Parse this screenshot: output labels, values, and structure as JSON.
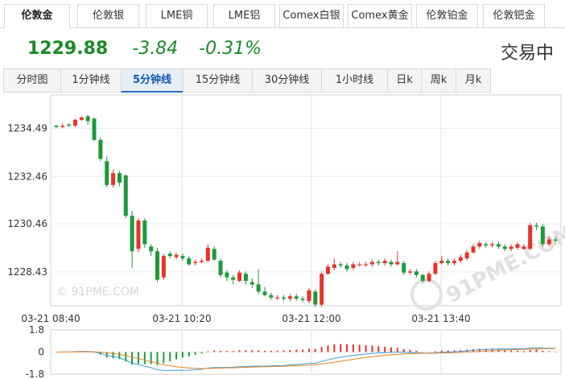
{
  "top_tabs": [
    {
      "label": "伦敦金",
      "active": true
    },
    {
      "label": "伦敦银",
      "active": false
    },
    {
      "label": "LME铜",
      "active": false
    },
    {
      "label": "LME铝",
      "active": false
    },
    {
      "label": "Comex白银",
      "active": false
    },
    {
      "label": "Comex黄金",
      "active": false
    },
    {
      "label": "伦敦铂金",
      "active": false
    },
    {
      "label": "伦敦钯金",
      "active": false
    }
  ],
  "quote": {
    "price": "1229.88",
    "change": "-3.84",
    "change_pct": "-0.31%",
    "status": "交易中",
    "color": "#1a8a28"
  },
  "interval_tabs": [
    {
      "label": "分时图",
      "active": false
    },
    {
      "label": "1分钟线",
      "active": false
    },
    {
      "label": "5分钟线",
      "active": true
    },
    {
      "label": "15分钟线",
      "active": false
    },
    {
      "label": "30分钟线",
      "active": false
    },
    {
      "label": "1小时线",
      "active": false
    },
    {
      "label": "日k",
      "active": false
    },
    {
      "label": "周k",
      "active": false
    },
    {
      "label": "月k",
      "active": false
    }
  ],
  "watermark": "© 91PME.COM",
  "chart_data": {
    "type": "candlestick",
    "y_ticks": [
      "1234.49",
      "1232.46",
      "1230.46",
      "1228.43"
    ],
    "x_ticks": [
      "03-21 08:40",
      "03-21 10:20",
      "03-21 12:00",
      "03-21 13:40"
    ],
    "ylim": [
      1227.0,
      1235.9
    ],
    "up_color": "#e8332a",
    "down_color": "#1c9a3a",
    "candles": [
      [
        1234.6,
        1234.55,
        1234.65,
        1234.5
      ],
      [
        1234.55,
        1234.6,
        1234.7,
        1234.5
      ],
      [
        1234.65,
        1234.6,
        1234.7,
        1234.55
      ],
      [
        1234.6,
        1234.85,
        1234.9,
        1234.55
      ],
      [
        1234.85,
        1234.95,
        1235.0,
        1234.8
      ],
      [
        1235.0,
        1234.8,
        1235.05,
        1234.65
      ],
      [
        1234.9,
        1234.0,
        1234.95,
        1233.95
      ],
      [
        1234.0,
        1233.2,
        1234.1,
        1233.1
      ],
      [
        1233.1,
        1232.1,
        1233.3,
        1232.0
      ],
      [
        1232.1,
        1232.6,
        1232.75,
        1232.0
      ],
      [
        1232.6,
        1232.2,
        1232.7,
        1232.05
      ],
      [
        1232.5,
        1230.8,
        1232.55,
        1230.7
      ],
      [
        1230.8,
        1229.3,
        1231.0,
        1228.6
      ],
      [
        1229.4,
        1230.6,
        1230.7,
        1229.25
      ],
      [
        1230.6,
        1229.6,
        1230.7,
        1229.45
      ],
      [
        1229.5,
        1229.3,
        1229.6,
        1229.1
      ],
      [
        1229.3,
        1228.1,
        1229.45,
        1228.0
      ],
      [
        1228.2,
        1229.1,
        1229.2,
        1228.1
      ],
      [
        1229.2,
        1229.1,
        1229.3,
        1229.0
      ],
      [
        1229.05,
        1229.15,
        1229.25,
        1228.95
      ],
      [
        1229.1,
        1229.0,
        1229.2,
        1228.9
      ],
      [
        1229.0,
        1228.75,
        1229.1,
        1228.7
      ],
      [
        1228.8,
        1228.85,
        1228.95,
        1228.7
      ],
      [
        1228.85,
        1228.9,
        1229.0,
        1228.8
      ],
      [
        1228.9,
        1229.45,
        1229.6,
        1228.85
      ],
      [
        1229.4,
        1228.95,
        1229.5,
        1228.9
      ],
      [
        1228.9,
        1228.3,
        1229.0,
        1228.2
      ],
      [
        1228.4,
        1228.2,
        1228.5,
        1228.05
      ],
      [
        1228.2,
        1228.1,
        1228.3,
        1227.9
      ],
      [
        1228.05,
        1228.4,
        1228.5,
        1228.0
      ],
      [
        1228.35,
        1228.05,
        1228.45,
        1227.9
      ],
      [
        1228.0,
        1227.9,
        1228.15,
        1227.75
      ],
      [
        1227.9,
        1227.6,
        1228.55,
        1227.5
      ],
      [
        1227.6,
        1227.45,
        1227.8,
        1227.4
      ],
      [
        1227.45,
        1227.35,
        1227.55,
        1227.25
      ],
      [
        1227.35,
        1227.35,
        1227.45,
        1227.25
      ],
      [
        1227.35,
        1227.3,
        1227.45,
        1227.2
      ],
      [
        1227.3,
        1227.4,
        1227.5,
        1227.2
      ],
      [
        1227.4,
        1227.3,
        1227.5,
        1227.2
      ],
      [
        1227.3,
        1227.25,
        1227.4,
        1227.15
      ],
      [
        1227.2,
        1227.65,
        1227.75,
        1227.1
      ],
      [
        1227.6,
        1227.05,
        1227.7,
        1226.95
      ],
      [
        1227.05,
        1228.35,
        1228.45,
        1226.95
      ],
      [
        1228.35,
        1228.65,
        1228.75,
        1228.3
      ],
      [
        1228.6,
        1228.75,
        1229.0,
        1228.5
      ],
      [
        1228.75,
        1228.7,
        1228.85,
        1228.6
      ],
      [
        1228.7,
        1228.55,
        1228.8,
        1228.45
      ],
      [
        1228.6,
        1228.75,
        1228.85,
        1228.5
      ],
      [
        1228.75,
        1228.75,
        1228.85,
        1228.65
      ],
      [
        1228.75,
        1228.75,
        1228.85,
        1228.65
      ],
      [
        1228.75,
        1228.85,
        1228.95,
        1228.65
      ],
      [
        1228.85,
        1228.8,
        1228.95,
        1228.7
      ],
      [
        1228.8,
        1228.9,
        1229.0,
        1228.7
      ],
      [
        1228.85,
        1228.75,
        1228.95,
        1228.65
      ],
      [
        1228.75,
        1228.85,
        1229.3,
        1228.7
      ],
      [
        1228.8,
        1228.4,
        1228.9,
        1228.3
      ],
      [
        1228.4,
        1228.45,
        1228.55,
        1228.3
      ],
      [
        1228.45,
        1228.3,
        1228.55,
        1228.2
      ],
      [
        1228.3,
        1228.05,
        1228.35,
        1227.95
      ],
      [
        1228.05,
        1228.35,
        1228.45,
        1228.0
      ],
      [
        1228.35,
        1228.8,
        1228.9,
        1228.3
      ],
      [
        1228.8,
        1228.9,
        1229.1,
        1228.75
      ],
      [
        1228.9,
        1228.8,
        1229.0,
        1228.7
      ],
      [
        1228.8,
        1228.9,
        1229.0,
        1228.7
      ],
      [
        1228.9,
        1229.05,
        1229.15,
        1228.8
      ],
      [
        1229.0,
        1229.25,
        1229.35,
        1228.9
      ],
      [
        1229.25,
        1229.5,
        1229.6,
        1229.2
      ],
      [
        1229.5,
        1229.65,
        1229.75,
        1229.4
      ],
      [
        1229.6,
        1229.55,
        1229.7,
        1229.45
      ],
      [
        1229.55,
        1229.6,
        1229.7,
        1229.45
      ],
      [
        1229.6,
        1229.5,
        1229.7,
        1229.4
      ],
      [
        1229.5,
        1229.4,
        1229.6,
        1229.3
      ],
      [
        1229.4,
        1229.5,
        1229.6,
        1229.3
      ],
      [
        1229.45,
        1229.6,
        1229.7,
        1229.35
      ],
      [
        1229.4,
        1229.5,
        1229.6,
        1229.35
      ],
      [
        1229.4,
        1230.4,
        1230.5,
        1229.35
      ],
      [
        1230.4,
        1230.35,
        1230.5,
        1230.2
      ],
      [
        1230.35,
        1229.6,
        1230.45,
        1229.5
      ],
      [
        1229.6,
        1229.8,
        1229.95,
        1229.5
      ],
      [
        1229.8,
        1229.75,
        1229.9,
        1229.6
      ]
    ],
    "indicator": {
      "ylim": [
        -1.8,
        1.8
      ],
      "y_ticks": [
        "1.8",
        "0",
        "-1.8"
      ],
      "line1_color": "#3aa0d8",
      "line2_color": "#e8822a"
    }
  }
}
